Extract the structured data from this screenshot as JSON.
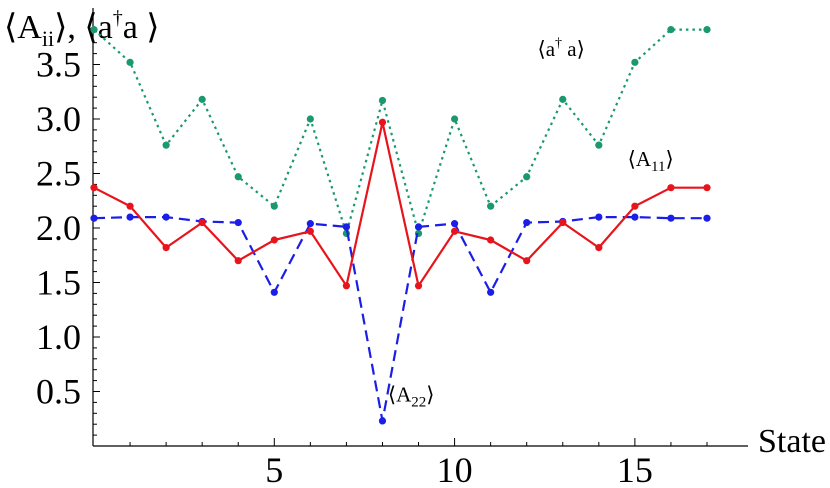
{
  "chart_data": {
    "type": "line",
    "title": "",
    "ylabel": "⟨Aii⟩, ⟨a†a ⟩",
    "ylabel_parts": {
      "pre": "⟨A",
      "sub": "ii",
      "mid": "⟩, ⟨a",
      "sup": "†",
      "post": "a ⟩"
    },
    "xlabel": "State",
    "xlim": [
      0,
      17.5
    ],
    "ylim": [
      0,
      3.85
    ],
    "x_ticks": [
      5,
      10,
      15
    ],
    "x_tick_labels": [
      "5",
      "10",
      "15"
    ],
    "y_ticks": [
      0.5,
      1.0,
      1.5,
      2.0,
      2.5,
      3.0,
      3.5
    ],
    "y_tick_labels": [
      "0.5",
      "1.0",
      "1.5",
      "2.0",
      "2.5",
      "3.0",
      "3.5"
    ],
    "x": [
      0,
      1,
      2,
      3,
      4,
      5,
      6,
      7,
      8,
      9,
      10,
      11,
      12,
      13,
      14,
      15,
      16,
      17
    ],
    "series": [
      {
        "name": "⟨a† a⟩",
        "label_parts": {
          "pre": "⟨a",
          "sup": "†",
          "post": " a⟩"
        },
        "label_at": [
          12.3,
          3.58
        ],
        "color": "#1a9a6c",
        "style": "dotted",
        "values": [
          3.82,
          3.52,
          2.76,
          3.18,
          2.47,
          2.2,
          3.0,
          1.95,
          3.17,
          1.95,
          3.0,
          2.2,
          2.47,
          3.18,
          2.76,
          3.52,
          3.82,
          3.82
        ]
      },
      {
        "name": "⟨A11⟩",
        "label_parts": {
          "pre": "⟨A",
          "sub": "11",
          "post": "⟩"
        },
        "label_at": [
          14.8,
          2.57
        ],
        "color": "#e8141c",
        "style": "solid",
        "values": [
          2.37,
          2.2,
          1.82,
          2.05,
          1.7,
          1.89,
          1.97,
          1.47,
          2.97,
          1.47,
          1.97,
          1.89,
          1.7,
          2.05,
          1.82,
          2.2,
          2.37,
          2.37
        ]
      },
      {
        "name": "⟨A22⟩",
        "label_parts": {
          "pre": "⟨A",
          "sub": "22",
          "post": "⟩"
        },
        "label_at": [
          8.15,
          0.41
        ],
        "color": "#1b1ee6",
        "style": "dashed",
        "values": [
          2.09,
          2.1,
          2.1,
          2.06,
          2.05,
          1.41,
          2.04,
          2.01,
          0.23,
          2.01,
          2.04,
          1.41,
          2.05,
          2.06,
          2.1,
          2.1,
          2.09,
          2.09
        ]
      }
    ],
    "grid": false,
    "legend": "none"
  }
}
